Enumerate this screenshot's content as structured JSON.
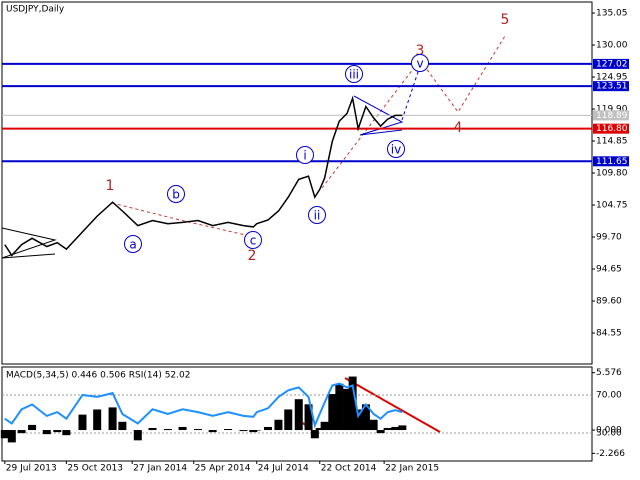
{
  "chart_data": [
    {
      "type": "line",
      "title": "USDJPY,Daily",
      "color": "#000000",
      "x": [
        "29 Jul 2013",
        "8 Aug 2013",
        "22 Aug 2013",
        "6 Sep 2013",
        "27 Sep 2013",
        "12 Oct 2013",
        "25 Oct 2013",
        "17 Nov 2013",
        "8 Dec 2013",
        "30 Dec 2013",
        "13 Jan 2014",
        "4 Feb 2014",
        "25 Feb 2014",
        "19 Mar 2014",
        "9 Apr 2014",
        "1 May 2014",
        "22 May 2014",
        "13 Jun 2014",
        "5 Jul 2014",
        "19 Jul 2014",
        "24 Jul 2014",
        "9 Aug 2014",
        "24 Aug 2014",
        "7 Sep 2014",
        "22 Sep 2014",
        "6 Oct 2014",
        "15 Oct 2014",
        "22 Oct 2014",
        "29 Oct 2014",
        "9 Nov 2014",
        "19 Nov 2014",
        "30 Nov 2014",
        "8 Dec 2014",
        "16 Dec 2014",
        "27 Dec 2014",
        "7 Jan 2015",
        "17 Jan 2015",
        "27 Jan 2015",
        "7 Feb 2015",
        "17 Feb 2015"
      ],
      "values": [
        98.5,
        96.8,
        98.5,
        99.5,
        98.2,
        98.8,
        97.8,
        100.5,
        103.0,
        105.2,
        103.8,
        101.5,
        102.3,
        101.8,
        102.0,
        102.3,
        101.5,
        102.0,
        101.5,
        101.3,
        101.8,
        102.4,
        103.8,
        106.0,
        108.8,
        109.3,
        106.0,
        107.2,
        109.0,
        114.8,
        118.0,
        119.2,
        121.6,
        116.8,
        120.3,
        118.5,
        117.2,
        118.3,
        118.9,
        118.9
      ],
      "xlim": [
        "25 Jul 2013",
        "15 Nov 2015"
      ],
      "xticks": [
        "29 Jul 2013",
        "25 Oct 2013",
        "27 Jan 2014",
        "25 Apr 2014",
        "24 Jul 2014",
        "22 Oct 2014",
        "22 Jan 2015"
      ],
      "ylim": [
        79.66,
        136.79
      ],
      "yticks": [
        135.05,
        {
          "value": 130.0,
          "label": "130.00"
        },
        124.95,
        {
          "value": 119.9,
          "label": "119.90"
        },
        114.85,
        {
          "value": 109.8,
          "label": "109.80"
        },
        104.75,
        {
          "value": 99.7,
          "label": "99.70"
        },
        94.65,
        {
          "value": 89.6,
          "label": "89.60"
        },
        84.55
      ],
      "hlines": [
        {
          "value": 127.02,
          "label": "127.02",
          "color": "#0000cc"
        },
        {
          "value": 123.51,
          "label": "123.51",
          "color": "#0000cc"
        },
        {
          "value": 116.8,
          "label": "116.80",
          "color": "#dd0000"
        },
        {
          "value": 111.65,
          "label": "111.65",
          "color": "#0000cc"
        }
      ],
      "last_price": {
        "value": 118.89,
        "color": "#c0c0c0"
      },
      "waves": [
        "1",
        "2",
        "3",
        "4",
        "5"
      ],
      "subwaves": [
        "a",
        "b",
        "c",
        "i",
        "ii",
        "iii",
        "iv",
        "v"
      ]
    },
    {
      "type": "macd",
      "title": "MACD(5,34,5) 0.446 0.506 RSI(14) 52.02",
      "series": [
        {
          "color": "#000000",
          "values": [
            -0.8,
            -1.2,
            -0.3,
            0.5,
            -0.4,
            -0.2,
            -0.5,
            1.5,
            2.0,
            2.2,
            0.8,
            -1.0,
            0.2,
            0.1,
            0.3,
            0.1,
            -0.2,
            0.1,
            -0.1,
            -0.2,
            0.0,
            0.3,
            1.0,
            2.0,
            3.0,
            2.5,
            -0.8,
            0.2,
            0.8,
            3.5,
            4.5,
            4.0,
            5.2,
            2.0,
            2.5,
            1.0,
            -0.3,
            0.2,
            0.3,
            0.45
          ]
        },
        {
          "color": "#1e90ff",
          "axis": "y2",
          "values": [
            45,
            40,
            55,
            60,
            48,
            52,
            45,
            70,
            68,
            72,
            50,
            40,
            55,
            50,
            55,
            52,
            48,
            52,
            48,
            47,
            52,
            56,
            68,
            75,
            78,
            68,
            38,
            50,
            62,
            80,
            82,
            78,
            80,
            48,
            60,
            50,
            45,
            52,
            54,
            52
          ]
        }
      ],
      "ylim": [
        -3.01,
        6.13
      ],
      "yticks": [
        5.576,
        {
          "value": 0,
          "label": "0.000"
        },
        -2.266
      ],
      "y2lim": [
        0.5,
        99.5
      ],
      "y2ticks": [
        {
          "value": 70,
          "label": "70.00"
        },
        {
          "value": 30,
          "label": "30.00"
        }
      ]
    }
  ]
}
